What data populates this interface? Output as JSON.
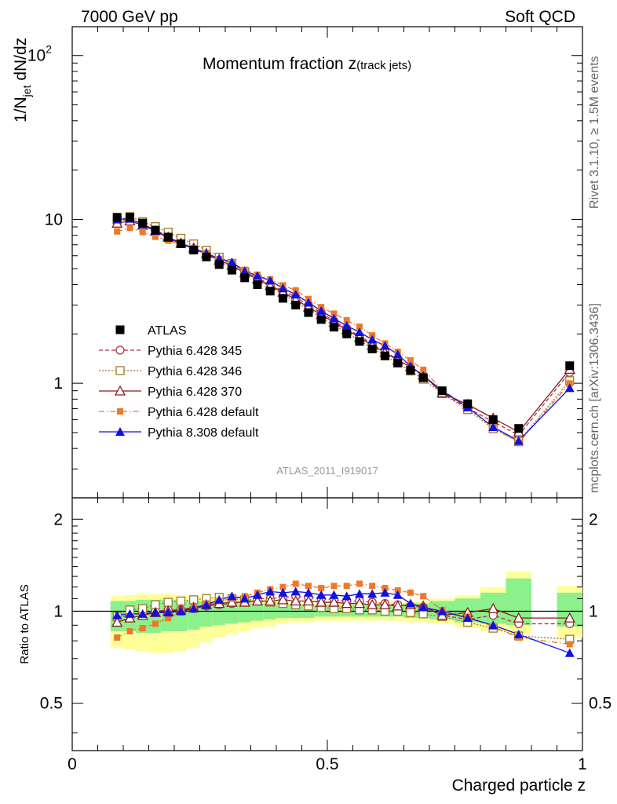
{
  "header": {
    "left": "7000 GeV pp",
    "right": "Soft QCD"
  },
  "side_labels": {
    "rivet": "Rivet 3.1.10, ≥ 1.5M events",
    "mcplots": "mcplots.cern.ch [arXiv:1306.3436]"
  },
  "chart_data": {
    "type": "scatter",
    "title_main": "Momentum fraction z",
    "title_sub": "(track jets)",
    "ylabel_main": "1/N",
    "ylabel_sub": "jet",
    "ylabel_rest": " dN/dz",
    "ylabel_ratio": "Ratio to ATLAS",
    "xlabel": "Charged particle z",
    "analysis_id": "ATLAS_2011_I919017",
    "x_range": [
      0,
      1
    ],
    "y_main_range_log": [
      0.2,
      150
    ],
    "y_ratio_range": [
      0.35,
      2.35
    ],
    "x_ticks": [
      {
        "v": 0,
        "label": "0"
      },
      {
        "v": 0.5,
        "label": "0.5"
      },
      {
        "v": 1,
        "label": "1"
      }
    ],
    "y_main_ticks": [
      {
        "v": 1,
        "label": "1"
      },
      {
        "v": 10,
        "label": "10"
      },
      {
        "v": 100,
        "label": "10",
        "sup": "2"
      }
    ],
    "y_ratio_ticks": [
      {
        "v": 0.5,
        "label": "0.5"
      },
      {
        "v": 1,
        "label": "1"
      },
      {
        "v": 2,
        "label": "2"
      }
    ],
    "x": [
      0.088,
      0.113,
      0.138,
      0.163,
      0.188,
      0.213,
      0.238,
      0.263,
      0.288,
      0.313,
      0.338,
      0.363,
      0.388,
      0.413,
      0.438,
      0.463,
      0.488,
      0.513,
      0.538,
      0.563,
      0.588,
      0.613,
      0.638,
      0.663,
      0.688,
      0.725,
      0.775,
      0.825,
      0.875,
      0.975
    ],
    "bands": [
      {
        "x0": 0.075,
        "x1": 0.1,
        "inner": [
          0.86,
          1.08
        ],
        "outer": [
          0.76,
          1.12
        ]
      },
      {
        "x0": 0.1,
        "x1": 0.125,
        "inner": [
          0.86,
          1.08
        ],
        "outer": [
          0.75,
          1.13
        ]
      },
      {
        "x0": 0.125,
        "x1": 0.15,
        "inner": [
          0.85,
          1.09
        ],
        "outer": [
          0.74,
          1.14
        ]
      },
      {
        "x0": 0.15,
        "x1": 0.175,
        "inner": [
          0.85,
          1.09
        ],
        "outer": [
          0.73,
          1.14
        ]
      },
      {
        "x0": 0.175,
        "x1": 0.2,
        "inner": [
          0.86,
          1.09
        ],
        "outer": [
          0.73,
          1.14
        ]
      },
      {
        "x0": 0.2,
        "x1": 0.225,
        "inner": [
          0.86,
          1.09
        ],
        "outer": [
          0.74,
          1.13
        ]
      },
      {
        "x0": 0.225,
        "x1": 0.25,
        "inner": [
          0.87,
          1.08
        ],
        "outer": [
          0.76,
          1.12
        ]
      },
      {
        "x0": 0.25,
        "x1": 0.275,
        "inner": [
          0.89,
          1.08
        ],
        "outer": [
          0.79,
          1.12
        ]
      },
      {
        "x0": 0.275,
        "x1": 0.3,
        "inner": [
          0.9,
          1.07
        ],
        "outer": [
          0.82,
          1.11
        ]
      },
      {
        "x0": 0.3,
        "x1": 0.325,
        "inner": [
          0.91,
          1.07
        ],
        "outer": [
          0.84,
          1.1
        ]
      },
      {
        "x0": 0.325,
        "x1": 0.35,
        "inner": [
          0.92,
          1.07
        ],
        "outer": [
          0.86,
          1.09
        ]
      },
      {
        "x0": 0.35,
        "x1": 0.375,
        "inner": [
          0.93,
          1.06
        ],
        "outer": [
          0.88,
          1.09
        ]
      },
      {
        "x0": 0.375,
        "x1": 0.4,
        "inner": [
          0.94,
          1.06
        ],
        "outer": [
          0.89,
          1.08
        ]
      },
      {
        "x0": 0.4,
        "x1": 0.425,
        "inner": [
          0.95,
          1.05
        ],
        "outer": [
          0.91,
          1.07
        ]
      },
      {
        "x0": 0.425,
        "x1": 0.45,
        "inner": [
          0.95,
          1.05
        ],
        "outer": [
          0.92,
          1.06
        ]
      },
      {
        "x0": 0.45,
        "x1": 0.475,
        "inner": [
          0.95,
          1.05
        ],
        "outer": [
          0.92,
          1.06
        ]
      },
      {
        "x0": 0.475,
        "x1": 0.5,
        "inner": [
          0.96,
          1.05
        ],
        "outer": [
          0.93,
          1.06
        ]
      },
      {
        "x0": 0.5,
        "x1": 0.525,
        "inner": [
          0.96,
          1.05
        ],
        "outer": [
          0.93,
          1.06
        ]
      },
      {
        "x0": 0.525,
        "x1": 0.55,
        "inner": [
          0.96,
          1.05
        ],
        "outer": [
          0.93,
          1.06
        ]
      },
      {
        "x0": 0.55,
        "x1": 0.575,
        "inner": [
          0.96,
          1.05
        ],
        "outer": [
          0.93,
          1.06
        ]
      },
      {
        "x0": 0.575,
        "x1": 0.6,
        "inner": [
          0.96,
          1.05
        ],
        "outer": [
          0.93,
          1.06
        ]
      },
      {
        "x0": 0.6,
        "x1": 0.625,
        "inner": [
          0.96,
          1.05
        ],
        "outer": [
          0.93,
          1.07
        ]
      },
      {
        "x0": 0.625,
        "x1": 0.65,
        "inner": [
          0.96,
          1.05
        ],
        "outer": [
          0.93,
          1.07
        ]
      },
      {
        "x0": 0.65,
        "x1": 0.675,
        "inner": [
          0.95,
          1.06
        ],
        "outer": [
          0.92,
          1.08
        ]
      },
      {
        "x0": 0.675,
        "x1": 0.7,
        "inner": [
          0.95,
          1.06
        ],
        "outer": [
          0.92,
          1.08
        ]
      },
      {
        "x0": 0.7,
        "x1": 0.75,
        "inner": [
          0.94,
          1.08
        ],
        "outer": [
          0.91,
          1.1
        ]
      },
      {
        "x0": 0.75,
        "x1": 0.8,
        "inner": [
          0.92,
          1.1
        ],
        "outer": [
          0.88,
          1.13
        ]
      },
      {
        "x0": 0.8,
        "x1": 0.85,
        "inner": [
          0.91,
          1.15
        ],
        "outer": [
          0.86,
          1.2
        ]
      },
      {
        "x0": 0.85,
        "x1": 0.9,
        "inner": [
          0.9,
          1.28
        ],
        "outer": [
          0.85,
          1.35
        ]
      },
      {
        "x0": 0.95,
        "x1": 1.0,
        "inner": [
          0.89,
          1.15
        ],
        "outer": [
          0.82,
          1.21
        ]
      }
    ],
    "atlas": [
      10.3,
      10.3,
      9.5,
      8.6,
      7.8,
      7.1,
      6.5,
      5.9,
      5.3,
      4.9,
      4.4,
      4.0,
      3.65,
      3.3,
      3.0,
      2.7,
      2.45,
      2.2,
      2.0,
      1.8,
      1.62,
      1.47,
      1.33,
      1.2,
      1.08,
      0.9,
      0.75,
      0.6,
      0.53,
      1.28
    ],
    "series": [
      {
        "name": "Pythia 6.428 345",
        "color": "#b03040",
        "dash": "5,3",
        "marker": "circle_open",
        "ratio": [
          0.95,
          0.97,
          0.99,
          1.0,
          1.01,
          1.01,
          1.02,
          1.04,
          1.05,
          1.06,
          1.08,
          1.1,
          1.1,
          1.11,
          1.12,
          1.11,
          1.1,
          1.09,
          1.08,
          1.08,
          1.07,
          1.06,
          1.05,
          1.04,
          1.03,
          0.97,
          0.94,
          0.97,
          0.91,
          0.91
        ]
      },
      {
        "name": "Pythia 6.428 346",
        "color": "#a07828",
        "dash": "2,2",
        "marker": "square_open",
        "ratio": [
          0.96,
          1.01,
          1.02,
          1.05,
          1.07,
          1.08,
          1.09,
          1.1,
          1.11,
          1.1,
          1.09,
          1.08,
          1.07,
          1.06,
          1.05,
          1.04,
          1.03,
          1.02,
          1.02,
          1.01,
          1.01,
          1.0,
          1.0,
          0.99,
          0.98,
          0.96,
          0.92,
          0.88,
          0.83,
          0.81
        ]
      },
      {
        "name": "Pythia 6.428 370",
        "color": "#8b1a1a",
        "dash": "",
        "marker": "triangle_open",
        "ratio": [
          0.92,
          0.95,
          0.97,
          0.99,
          1.0,
          1.01,
          1.03,
          1.05,
          1.06,
          1.07,
          1.07,
          1.08,
          1.08,
          1.09,
          1.08,
          1.08,
          1.07,
          1.07,
          1.06,
          1.06,
          1.05,
          1.05,
          1.04,
          1.05,
          1.04,
          0.97,
          0.99,
          1.02,
          0.95,
          0.95
        ]
      },
      {
        "name": "Pythia 6.428 default",
        "color": "#f07828",
        "dash": "7,3,1.5,3",
        "marker": "square_filled",
        "ratio": [
          0.82,
          0.86,
          0.88,
          0.91,
          0.95,
          0.99,
          1.03,
          1.06,
          1.08,
          1.1,
          1.12,
          1.15,
          1.18,
          1.2,
          1.23,
          1.21,
          1.19,
          1.21,
          1.21,
          1.23,
          1.21,
          1.19,
          1.17,
          1.15,
          1.12,
          1.01,
          0.96,
          0.89,
          0.82,
          0.78
        ]
      },
      {
        "name": "Pythia 8.308 default",
        "color": "#1010e0",
        "dash": "",
        "marker": "triangle_filled",
        "ratio": [
          0.97,
          0.98,
          0.98,
          0.99,
          0.99,
          1.0,
          1.02,
          1.05,
          1.09,
          1.12,
          1.1,
          1.13,
          1.16,
          1.15,
          1.16,
          1.15,
          1.13,
          1.13,
          1.12,
          1.14,
          1.14,
          1.15,
          1.13,
          1.06,
          1.03,
          1.0,
          0.95,
          0.9,
          0.84,
          0.73
        ]
      }
    ],
    "legend": [
      {
        "label": "ATLAS",
        "marker": "data"
      },
      {
        "label": "Pythia 6.428 345",
        "series": 0
      },
      {
        "label": "Pythia 6.428 346",
        "series": 1
      },
      {
        "label": "Pythia 6.428 370",
        "series": 2
      },
      {
        "label": "Pythia 6.428 default",
        "series": 3
      },
      {
        "label": "Pythia 8.308 default",
        "series": 4
      }
    ],
    "legend_position": "middle-left"
  }
}
